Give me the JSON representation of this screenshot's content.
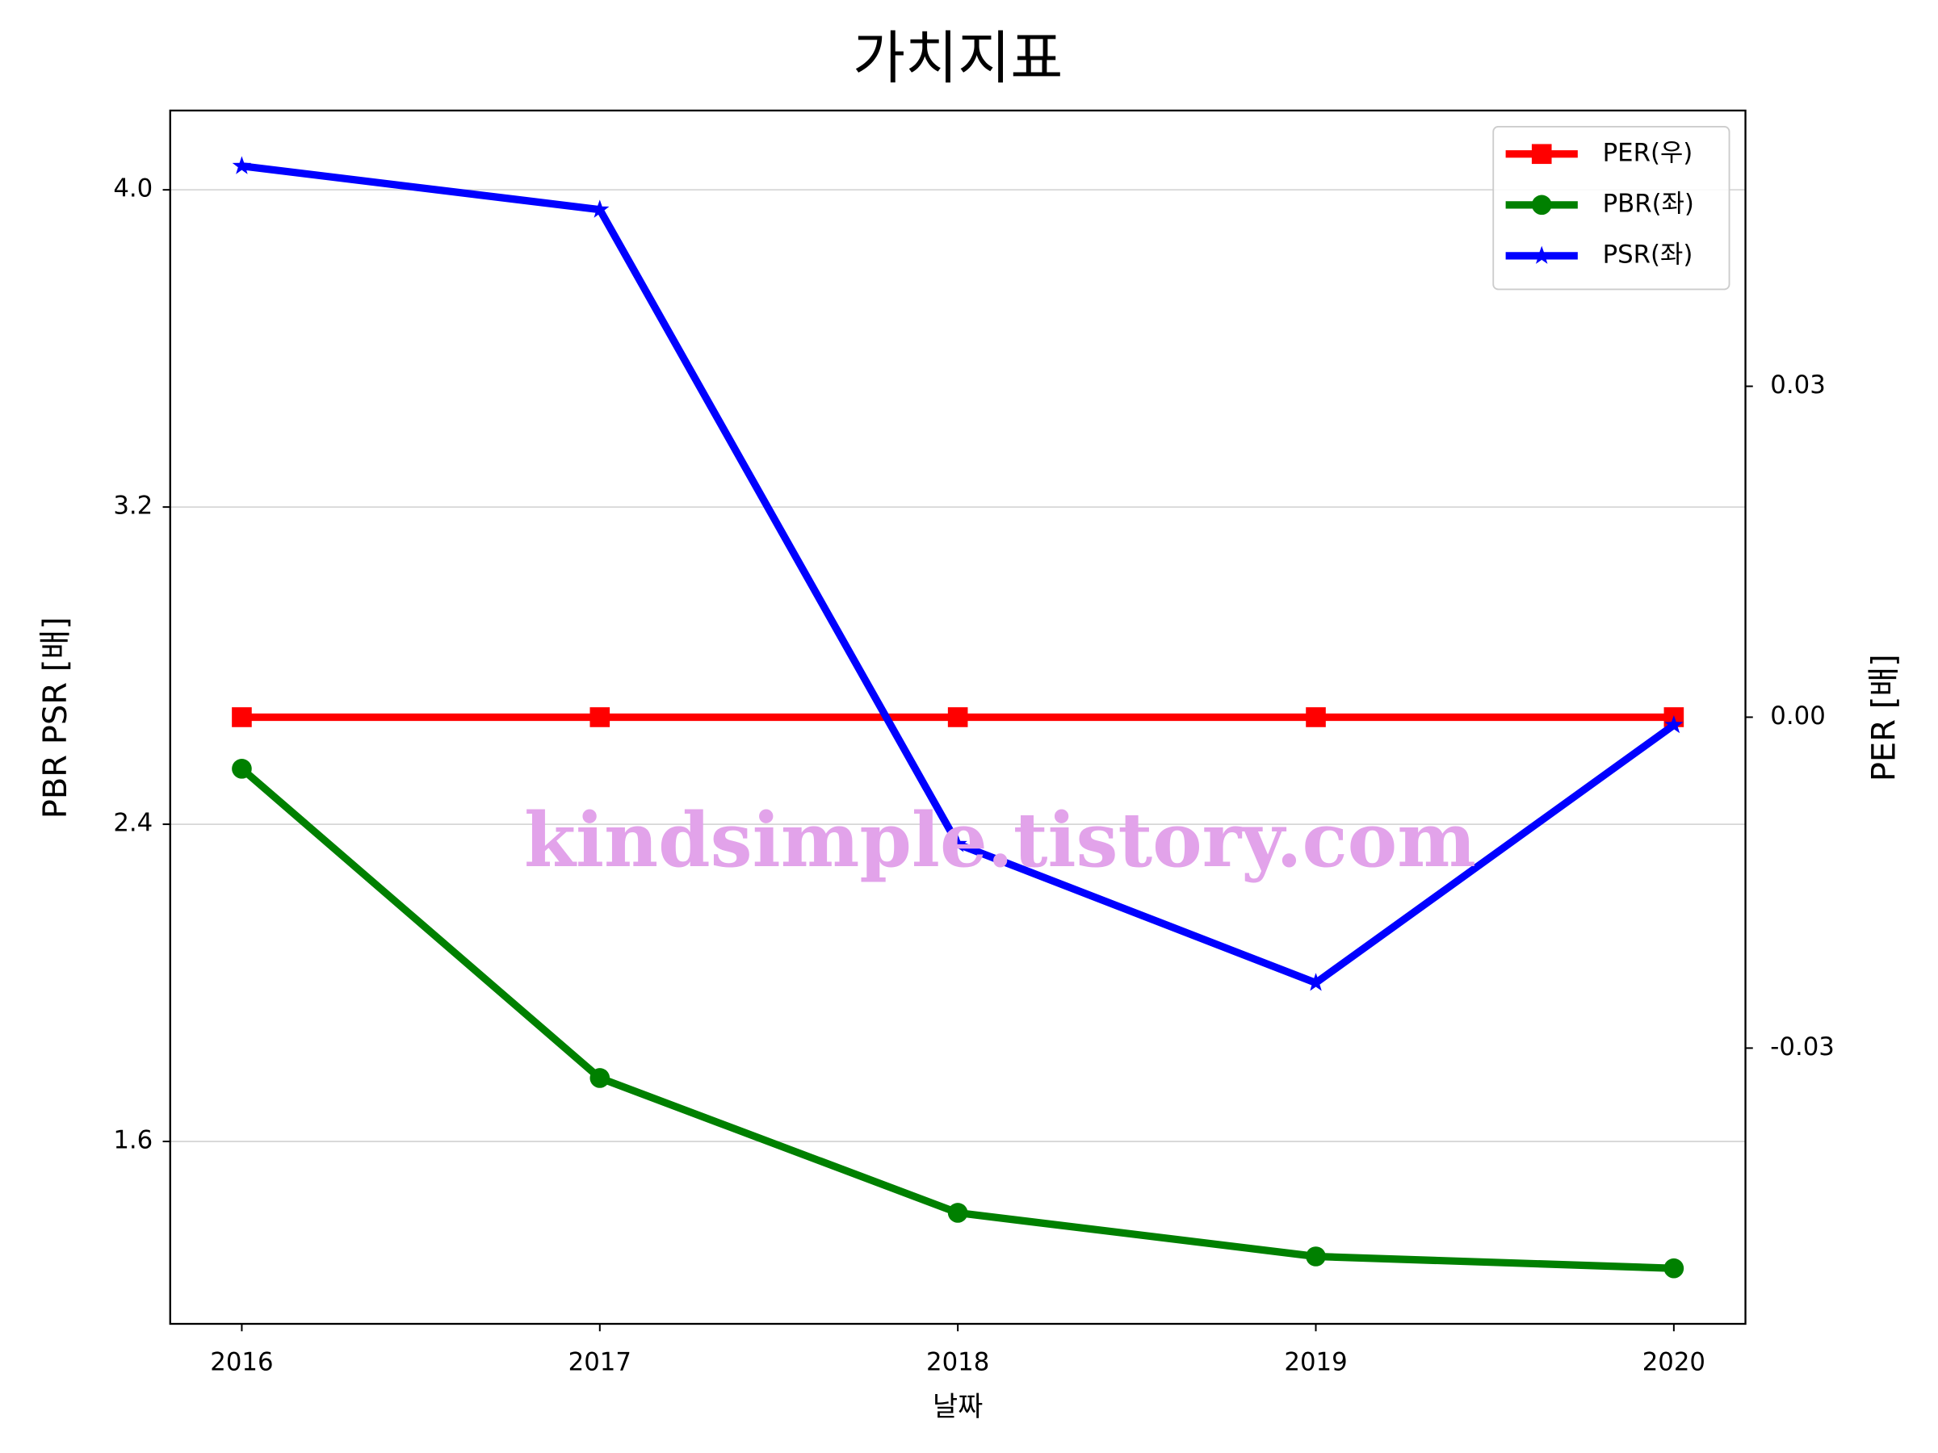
{
  "chart_data": {
    "type": "line",
    "title": "가치지표",
    "xlabel": "날짜",
    "ylabel": "PBR PSR [배]",
    "y2label": "PER [배]",
    "watermark": "kindsimple.tistory.com",
    "categories": [
      "2016",
      "2017",
      "2018",
      "2019",
      "2020"
    ],
    "series": [
      {
        "name": "PER(우)",
        "color": "#ff0000",
        "marker": "square",
        "axis": "y2",
        "values": [
          0,
          0,
          0,
          0,
          0
        ]
      },
      {
        "name": "PBR(좌)",
        "color": "#008000",
        "marker": "circle",
        "values": [
          2.54,
          1.76,
          1.42,
          1.31,
          1.28
        ]
      },
      {
        "name": "PSR(좌)",
        "color": "#0000ff",
        "marker": "star",
        "values": [
          4.06,
          3.95,
          2.35,
          2.0,
          2.65
        ]
      }
    ],
    "ylim": [
      1.14,
      4.2
    ],
    "yticks": [
      {
        "value": 4.0,
        "label": "4.0"
      },
      3.2,
      2.4,
      1.6
    ],
    "y2lim": [
      -0.055,
      0.055
    ],
    "y2ticks": [
      0.03,
      {
        "value": 0,
        "label": "0.00"
      },
      -0.03
    ],
    "ylabel_color": "#008000",
    "y2label_color": "#ff0000",
    "grid": true,
    "legend": "upper right"
  }
}
